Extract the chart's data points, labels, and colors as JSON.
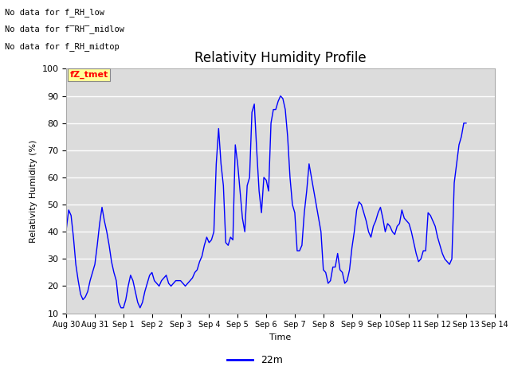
{
  "title": "Relativity Humidity Profile",
  "ylabel": "Relativity Humidity (%)",
  "xlabel": "Time",
  "ylim": [
    10,
    100
  ],
  "yticks": [
    10,
    20,
    30,
    40,
    50,
    60,
    70,
    80,
    90,
    100
  ],
  "line_color": "blue",
  "line_label": "22m",
  "bg_color": "#dcdcdc",
  "no_data_texts": [
    "No data for f_RH_low",
    "No data for f̅RH̅_midlow",
    "No data for f_RH_midtop"
  ],
  "xtick_labels": [
    "Aug 30",
    "Aug 31",
    "Sep 1",
    "Sep 2",
    "Sep 3",
    "Sep 4",
    "Sep 5",
    "Sep 6",
    "Sep 7",
    "Sep 8",
    "Sep 9",
    "Sep 10",
    "Sep 11",
    "Sep 12",
    "Sep 13",
    "Sep 14"
  ],
  "x_values": [
    0,
    1,
    2,
    3,
    4,
    5,
    6,
    7,
    8,
    9,
    10,
    11,
    12,
    13,
    14,
    15
  ],
  "time_data": [
    0.0,
    0.083,
    0.167,
    0.25,
    0.333,
    0.417,
    0.5,
    0.583,
    0.667,
    0.75,
    0.833,
    0.917,
    1.0,
    1.083,
    1.167,
    1.25,
    1.333,
    1.417,
    1.5,
    1.583,
    1.667,
    1.75,
    1.833,
    1.917,
    2.0,
    2.083,
    2.167,
    2.25,
    2.333,
    2.417,
    2.5,
    2.583,
    2.667,
    2.75,
    2.833,
    2.917,
    3.0,
    3.083,
    3.167,
    3.25,
    3.333,
    3.417,
    3.5,
    3.583,
    3.667,
    3.75,
    3.833,
    3.917,
    4.0,
    4.083,
    4.167,
    4.25,
    4.333,
    4.417,
    4.5,
    4.583,
    4.667,
    4.75,
    4.833,
    4.917,
    5.0,
    5.083,
    5.167,
    5.25,
    5.333,
    5.417,
    5.5,
    5.583,
    5.667,
    5.75,
    5.833,
    5.917,
    6.0,
    6.083,
    6.167,
    6.25,
    6.333,
    6.417,
    6.5,
    6.583,
    6.667,
    6.75,
    6.833,
    6.917,
    7.0,
    7.083,
    7.167,
    7.25,
    7.333,
    7.417,
    7.5,
    7.583,
    7.667,
    7.75,
    7.833,
    7.917,
    8.0,
    8.083,
    8.167,
    8.25,
    8.333,
    8.417,
    8.5,
    8.583,
    8.667,
    8.75,
    8.833,
    8.917,
    9.0,
    9.083,
    9.167,
    9.25,
    9.333,
    9.417,
    9.5,
    9.583,
    9.667,
    9.75,
    9.833,
    9.917,
    10.0,
    10.083,
    10.167,
    10.25,
    10.333,
    10.417,
    10.5,
    10.583,
    10.667,
    10.75,
    10.833,
    10.917,
    11.0,
    11.083,
    11.167,
    11.25,
    11.333,
    11.417,
    11.5,
    11.583,
    11.667,
    11.75,
    11.833,
    11.917,
    12.0,
    12.083,
    12.167,
    12.25,
    12.333,
    12.417,
    12.5,
    12.583,
    12.667,
    12.75,
    12.833,
    12.917,
    13.0,
    13.083,
    13.167,
    13.25,
    13.333,
    13.417,
    13.5,
    13.583,
    13.667,
    13.75,
    13.833,
    13.917,
    14.0
  ],
  "humidity_data": [
    41,
    48,
    46,
    38,
    28,
    22,
    17,
    15,
    16,
    18,
    22,
    25,
    28,
    35,
    43,
    49,
    44,
    40,
    35,
    29,
    25,
    22,
    14,
    12,
    12,
    15,
    20,
    24,
    22,
    18,
    14,
    12,
    14,
    18,
    21,
    24,
    25,
    22,
    21,
    20,
    22,
    23,
    24,
    21,
    20,
    21,
    22,
    22,
    22,
    21,
    20,
    21,
    22,
    23,
    25,
    26,
    29,
    31,
    35,
    38,
    36,
    37,
    40,
    65,
    78,
    65,
    57,
    36,
    35,
    38,
    37,
    72,
    65,
    55,
    45,
    40,
    57,
    60,
    84,
    87,
    70,
    55,
    47,
    60,
    59,
    55,
    80,
    85,
    85,
    88,
    90,
    89,
    85,
    75,
    60,
    50,
    47,
    33,
    33,
    35,
    47,
    55,
    65,
    60,
    55,
    50,
    45,
    40,
    26,
    25,
    21,
    22,
    27,
    27,
    32,
    26,
    25,
    21,
    22,
    26,
    34,
    40,
    48,
    51,
    50,
    47,
    44,
    40,
    38,
    42,
    44,
    47,
    49,
    45,
    40,
    43,
    42,
    40,
    39,
    42,
    43,
    48,
    45,
    44,
    43,
    40,
    36,
    32,
    29,
    30,
    33,
    33,
    47,
    46,
    44,
    42,
    38,
    35,
    32,
    30,
    29,
    28,
    30,
    58,
    65,
    72,
    75,
    80,
    80
  ]
}
